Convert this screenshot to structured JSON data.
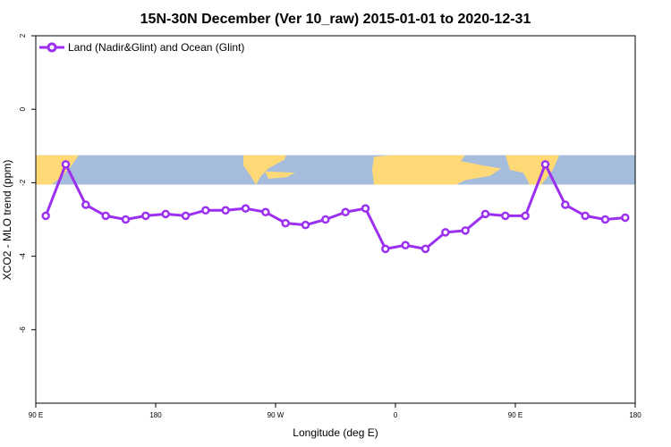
{
  "chart_data": {
    "type": "line",
    "title": "15N-30N December (Ver 10_raw)   2015-01-01 to 2020-12-31",
    "xlabel": "Longitude (deg E)",
    "ylabel": "XCO2 - MLO trend (ppm)",
    "xlim": [
      90,
      540
    ],
    "ylim": [
      -8,
      2
    ],
    "x_ticks": [
      {
        "value": 90,
        "label": "90 E"
      },
      {
        "value": 180,
        "label": "180"
      },
      {
        "value": 270,
        "label": "90 W"
      },
      {
        "value": 360,
        "label": "0"
      },
      {
        "value": 450,
        "label": "90 E"
      },
      {
        "value": 540,
        "label": "180"
      }
    ],
    "y_ticks": [
      {
        "value": 2,
        "label": "2"
      },
      {
        "value": 0,
        "label": "0"
      },
      {
        "value": -2,
        "label": "-2"
      },
      {
        "value": -4,
        "label": "-4"
      },
      {
        "value": -6,
        "label": "-6"
      }
    ],
    "legend_position": "top-left",
    "series": [
      {
        "name": "Land (Nadir&Glint) and Ocean (Glint)",
        "color": "#9b30f0",
        "x": [
          97.5,
          112.5,
          127.5,
          142.5,
          157.5,
          172.5,
          187.5,
          202.5,
          217.5,
          232.5,
          247.5,
          262.5,
          277.5,
          292.5,
          307.5,
          322.5,
          337.5,
          352.5,
          367.5,
          382.5,
          397.5,
          412.5,
          427.5,
          442.5,
          457.5,
          472.5,
          487.5,
          502.5,
          517.5,
          532.5
        ],
        "y": [
          -2.9,
          -1.5,
          -2.6,
          -2.9,
          -3.0,
          -2.9,
          -2.85,
          -2.9,
          -2.75,
          -2.75,
          -2.7,
          -2.8,
          -3.1,
          -3.15,
          -3.0,
          -2.8,
          -2.7,
          -3.8,
          -3.7,
          -3.8,
          -3.35,
          -3.3,
          -2.85,
          -2.9,
          -2.9,
          -1.5,
          -2.6,
          -2.9,
          -3.0,
          -2.95
        ]
      }
    ],
    "map_band": {
      "lat_range": "15N-30N",
      "y_range": [
        -2.05,
        -1.25
      ],
      "ocean_color": "#a6bcdd",
      "land_color": "#fed976"
    },
    "grid": false
  }
}
